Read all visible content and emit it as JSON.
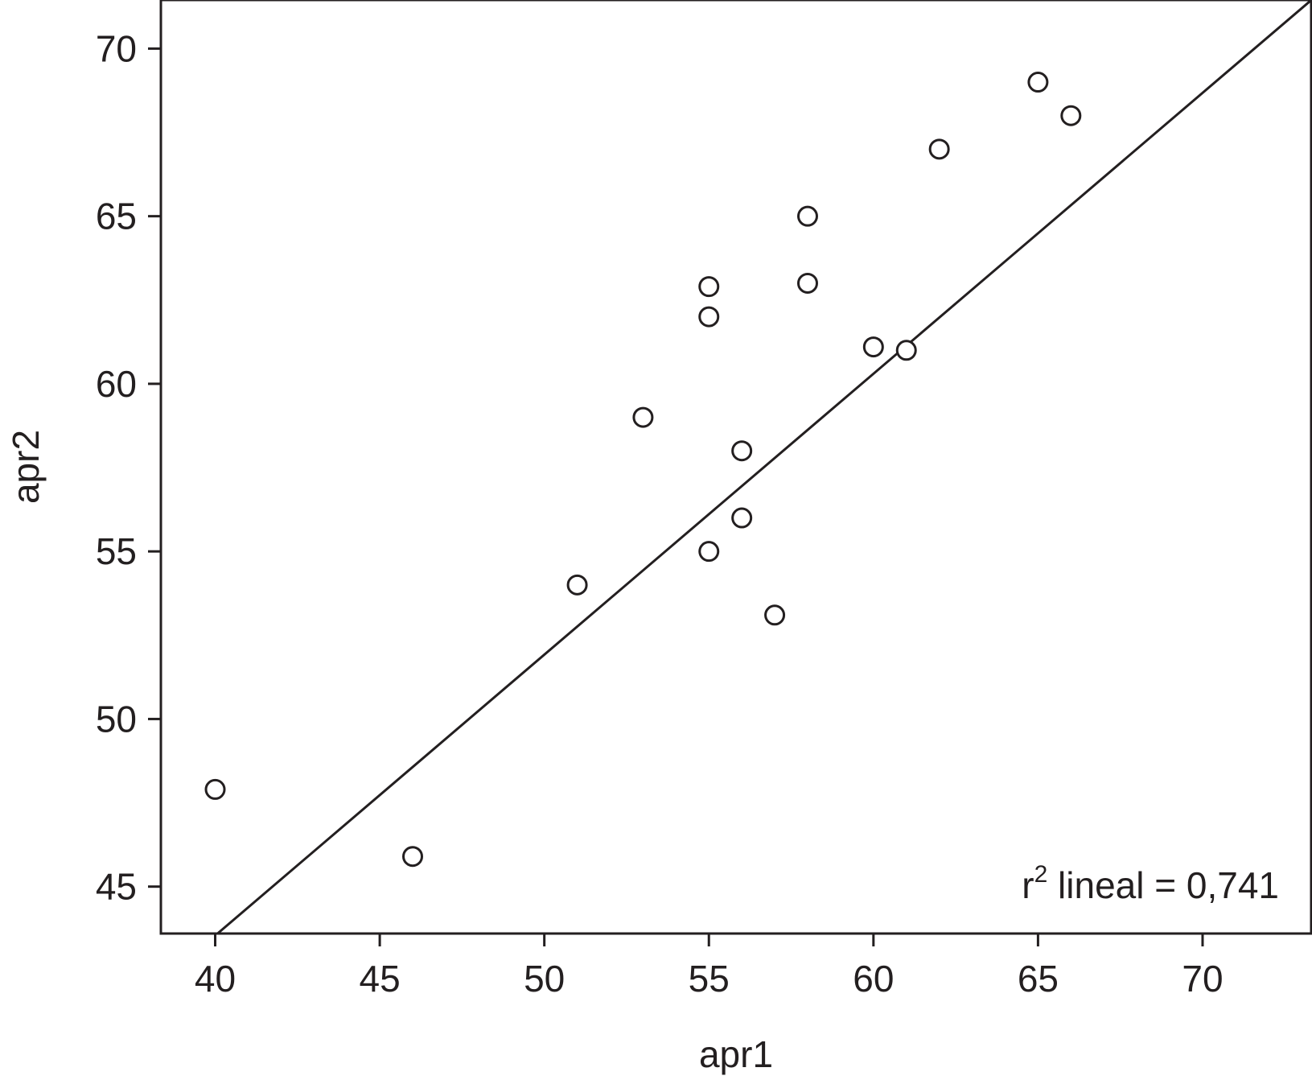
{
  "chart_data": {
    "type": "scatter",
    "title": "",
    "xlabel": "apr1",
    "ylabel": "apr2",
    "xlim": [
      38.35,
      73.3
    ],
    "ylim": [
      43.6,
      71.45
    ],
    "x_ticks": [
      40,
      45,
      50,
      55,
      60,
      65,
      70
    ],
    "y_ticks": [
      45,
      50,
      55,
      60,
      65,
      70
    ],
    "x_tick_labels": [
      "40",
      "45",
      "50",
      "55",
      "60",
      "65",
      "70"
    ],
    "y_tick_labels": [
      "45",
      "50",
      "55",
      "60",
      "65",
      "70"
    ],
    "grid": false,
    "legend": "none",
    "points": [
      {
        "x": 40,
        "y": 47.9
      },
      {
        "x": 46,
        "y": 45.9
      },
      {
        "x": 51,
        "y": 54
      },
      {
        "x": 53,
        "y": 59
      },
      {
        "x": 55,
        "y": 62.9
      },
      {
        "x": 55,
        "y": 62
      },
      {
        "x": 55,
        "y": 55
      },
      {
        "x": 56,
        "y": 56
      },
      {
        "x": 56,
        "y": 58
      },
      {
        "x": 57,
        "y": 53.1
      },
      {
        "x": 58,
        "y": 63
      },
      {
        "x": 58,
        "y": 65
      },
      {
        "x": 60,
        "y": 61.1
      },
      {
        "x": 61,
        "y": 61
      },
      {
        "x": 62,
        "y": 67
      },
      {
        "x": 65,
        "y": 69
      },
      {
        "x": 66,
        "y": 68
      }
    ],
    "fit_line": {
      "intercept": 10.02,
      "slope": 0.838
    },
    "annotation": {
      "base": "r",
      "superscript": "2",
      "text": " lineal = 0,741"
    },
    "colors": {
      "ink": "#231f20",
      "background": "#ffffff"
    }
  }
}
